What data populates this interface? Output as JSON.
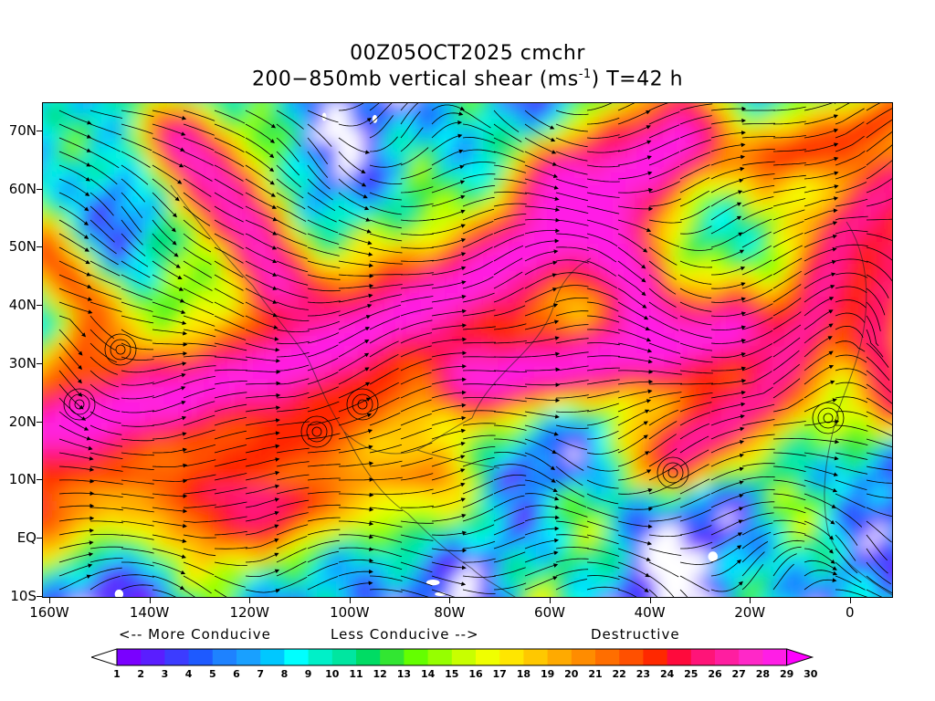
{
  "title": {
    "line1": "00Z05OCT2025 cmchr",
    "line2_prefix": "200−850mb vertical shear (ms",
    "line2_sup": "-1",
    "line2_suffix": ") T=42 h"
  },
  "map": {
    "lat_labels": [
      "70N",
      "60N",
      "50N",
      "40N",
      "30N",
      "20N",
      "10N",
      "EQ",
      "10S"
    ],
    "lon_labels": [
      "160W",
      "140W",
      "120W",
      "100W",
      "80W",
      "60W",
      "40W",
      "20W",
      "0"
    ],
    "lat_range": [
      -10,
      75
    ],
    "lon_range": [
      -160,
      10
    ]
  },
  "legend": {
    "more_conducive": "<-- More Conducive",
    "less_conducive": "Less Conducive -->",
    "destructive": "Destructive",
    "values": [
      "1",
      "2",
      "3",
      "4",
      "5",
      "6",
      "7",
      "8",
      "9",
      "10",
      "11",
      "12",
      "13",
      "14",
      "15",
      "16",
      "17",
      "18",
      "19",
      "20",
      "21",
      "22",
      "23",
      "24",
      "25",
      "26",
      "27",
      "28",
      "29",
      "30"
    ],
    "colors": [
      "#ffffff",
      "#7a00ff",
      "#5a1eff",
      "#3c3cff",
      "#1e5aff",
      "#1e82ff",
      "#19a0ff",
      "#00c8ff",
      "#00ffff",
      "#00f0c8",
      "#00e6a0",
      "#00dc64",
      "#32e632",
      "#64ff00",
      "#96ff00",
      "#c8ff00",
      "#f0ff00",
      "#ffe600",
      "#ffc800",
      "#ffaa00",
      "#ff8c00",
      "#ff6e00",
      "#ff5000",
      "#ff2800",
      "#ff0a3c",
      "#ff1478",
      "#ff1ea0",
      "#ff28c8",
      "#ff1ee6",
      "#ff00ff"
    ]
  }
}
